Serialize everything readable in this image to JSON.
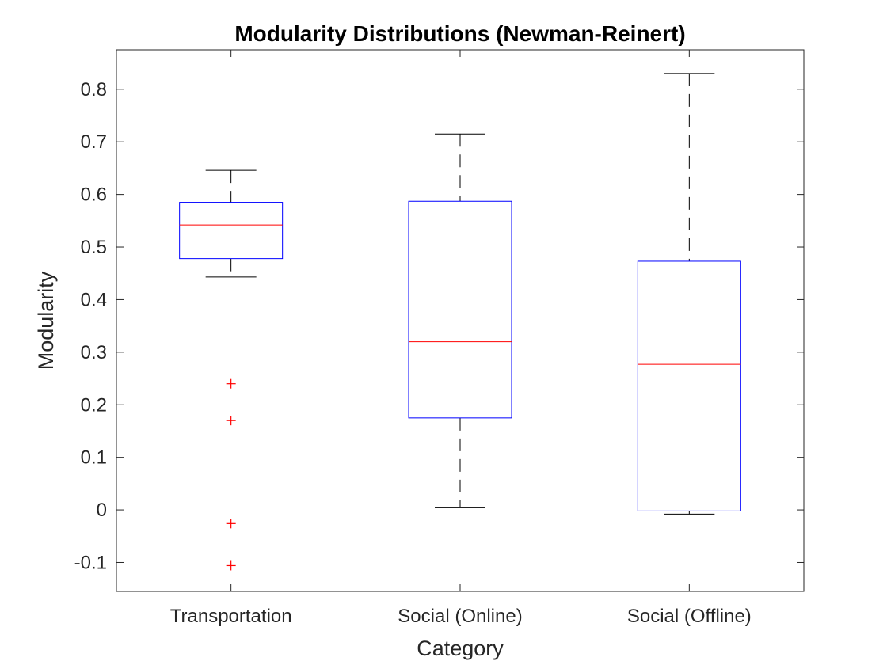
{
  "chart_data": {
    "type": "boxplot",
    "title": "Modularity Distributions (Newman-Reinert)",
    "xlabel": "Category",
    "ylabel": "Modularity",
    "ylim": [
      -0.155,
      0.875
    ],
    "yticks": [
      -0.1,
      0,
      0.1,
      0.2,
      0.3,
      0.4,
      0.5,
      0.6,
      0.7,
      0.8
    ],
    "ytick_labels": [
      "-0.1",
      "0",
      "0.1",
      "0.2",
      "0.3",
      "0.4",
      "0.5",
      "0.6",
      "0.7",
      "0.8"
    ],
    "grid": false,
    "legend": "none",
    "categories": [
      "Transportation",
      "Social (Online)",
      "Social (Offline)"
    ],
    "boxes": [
      {
        "category": "Transportation",
        "whisker_low": 0.443,
        "q1": 0.478,
        "median": 0.542,
        "q3": 0.585,
        "whisker_high": 0.646,
        "outliers": [
          0.24,
          0.17,
          -0.026,
          -0.106
        ]
      },
      {
        "category": "Social (Online)",
        "whisker_low": 0.004,
        "q1": 0.175,
        "median": 0.32,
        "q3": 0.587,
        "whisker_high": 0.715,
        "outliers": []
      },
      {
        "category": "Social (Offline)",
        "whisker_low": -0.008,
        "q1": -0.002,
        "median": 0.277,
        "q3": 0.473,
        "whisker_high": 0.83,
        "outliers": []
      }
    ],
    "colors": {
      "box": "#0000ff",
      "median": "#ff0000",
      "whisker": "#000000",
      "outlier": "#ff0000",
      "axes": "#262626"
    }
  }
}
